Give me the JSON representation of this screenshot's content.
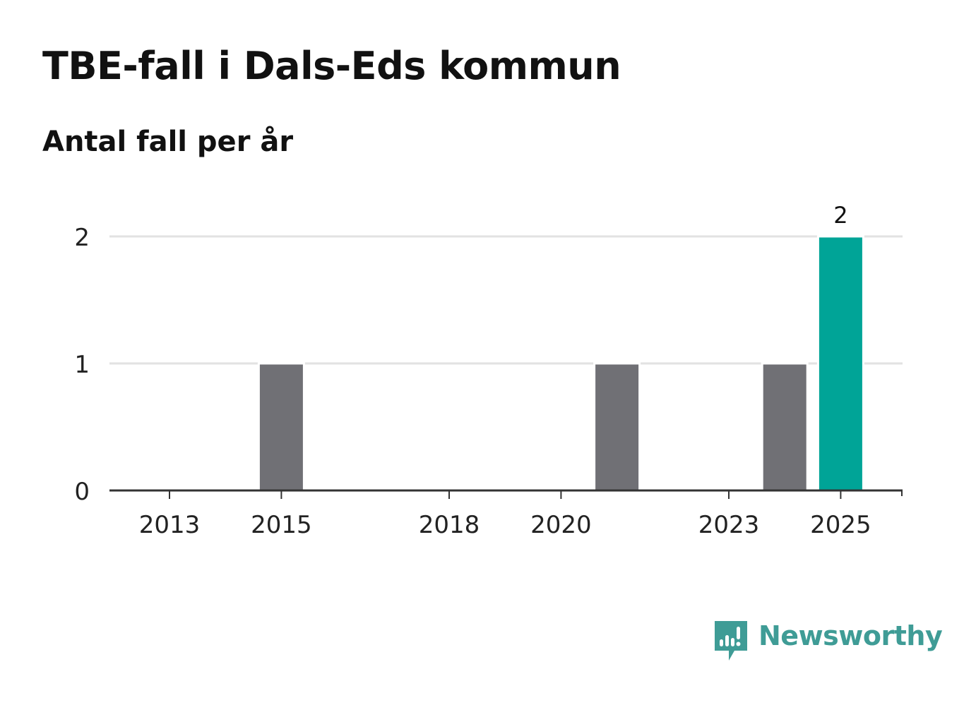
{
  "header": {
    "title": "TBE-fall i Dals-Eds kommun",
    "subtitle": "Antal fall per år"
  },
  "brand": {
    "name": "Newsworthy",
    "logo_icon": "newsworthy-bar-chart-speech-bubble-icon",
    "color": "#3f9c96"
  },
  "colors": {
    "bar_default": "#707075",
    "bar_highlight": "#00a497",
    "grid": "#e2e2e2",
    "axis": "#333333",
    "text": "#222222"
  },
  "chart_data": {
    "type": "bar",
    "title": "TBE-fall i Dals-Eds kommun",
    "subtitle": "Antal fall per år",
    "xlabel": "",
    "ylabel": "",
    "categories": [
      "2013",
      "2014",
      "2015",
      "2016",
      "2017",
      "2018",
      "2019",
      "2020",
      "2021",
      "2022",
      "2023",
      "2024",
      "2025"
    ],
    "values": [
      0,
      0,
      1,
      0,
      0,
      0,
      0,
      0,
      1,
      0,
      0,
      1,
      2
    ],
    "highlight": [
      "2025"
    ],
    "value_labels": {
      "2025": "2"
    },
    "x_tick_labels": [
      "2013",
      "2015",
      "2018",
      "2020",
      "2023",
      "2025"
    ],
    "y_ticks": [
      0,
      1,
      2
    ],
    "ylim": [
      0,
      2
    ],
    "grid": true,
    "legend": "none"
  }
}
